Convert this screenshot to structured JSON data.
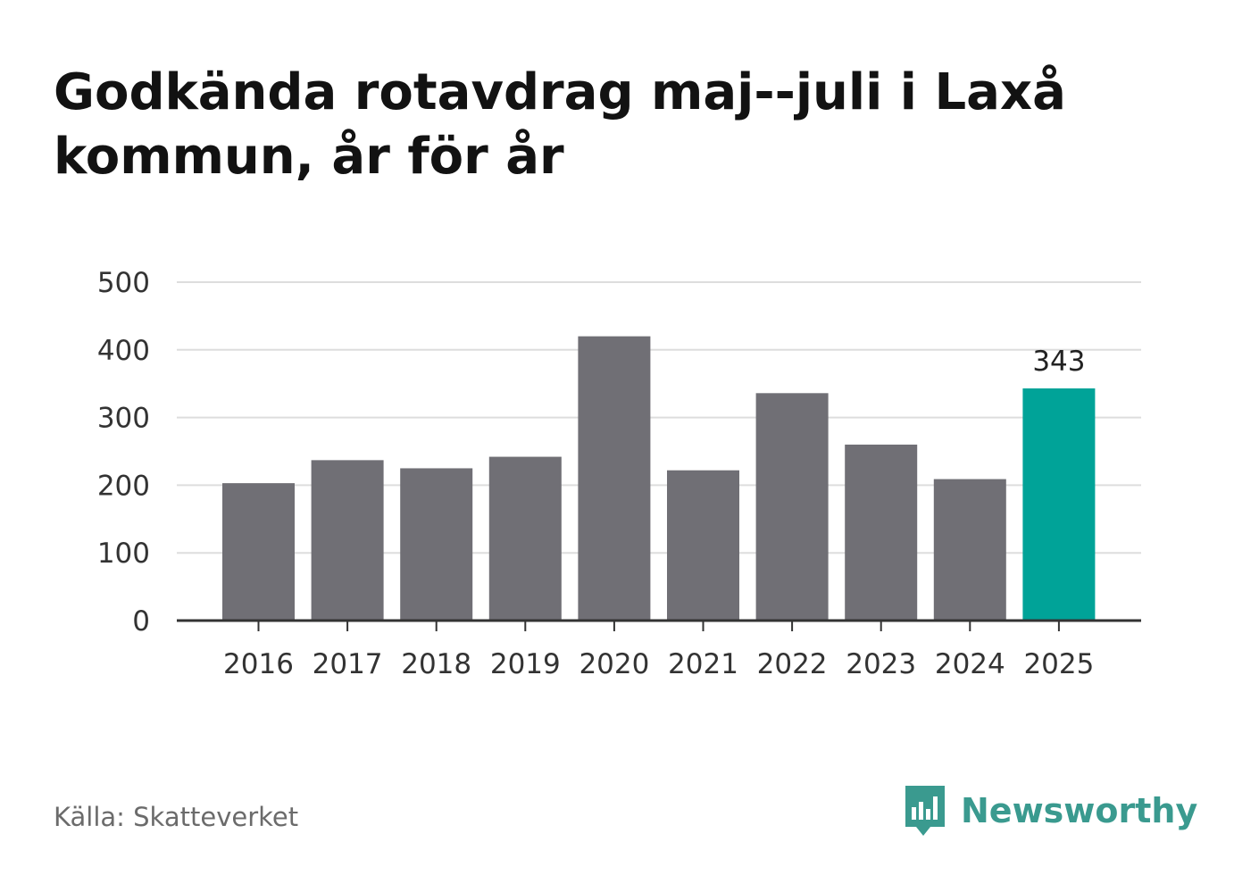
{
  "title": "Godkända rotavdrag maj--juli i Laxå kommun, år för år",
  "source": "Källa: Skatteverket",
  "brand": {
    "name": "Newsworthy",
    "icon": "newsworthy-logo-icon",
    "color": "#3a9a8f"
  },
  "chart_data": {
    "type": "bar",
    "title": "Godkända rotavdrag maj--juli i Laxå kommun, år för år",
    "xlabel": "",
    "ylabel": "",
    "categories": [
      "2016",
      "2017",
      "2018",
      "2019",
      "2020",
      "2021",
      "2022",
      "2023",
      "2024",
      "2025"
    ],
    "values": [
      203,
      237,
      225,
      242,
      420,
      222,
      336,
      260,
      209,
      343
    ],
    "ylim": [
      0,
      500
    ],
    "yticks": [
      "0",
      "100",
      "200",
      "300",
      "400",
      "500"
    ],
    "grid": true,
    "highlight": {
      "category": "2025",
      "label": "343"
    },
    "colors": {
      "bar": "#706f75",
      "highlight": "#00a398",
      "grid": "#dddddd",
      "axis": "#333333"
    }
  }
}
